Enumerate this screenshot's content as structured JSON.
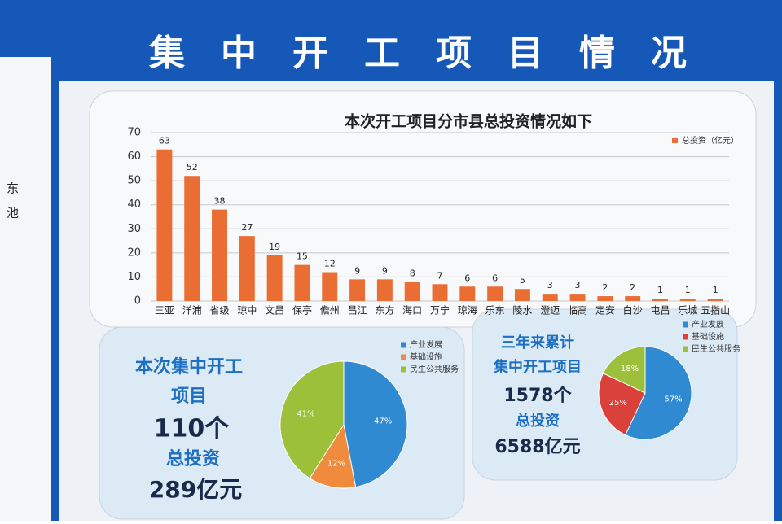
{
  "header": {
    "title": "集中开工项目情况"
  },
  "side_text": [
    "东",
    "池"
  ],
  "chart_data": [
    {
      "type": "bar",
      "title": "本次开工项目分市县总投资情况如下",
      "categories": [
        "三亚",
        "洋浦",
        "省级",
        "琼中",
        "文昌",
        "保亭",
        "儋州",
        "昌江",
        "东方",
        "海口",
        "万宁",
        "琼海",
        "乐东",
        "陵水",
        "澄迈",
        "临高",
        "定安",
        "白沙",
        "屯昌",
        "乐城",
        "五指山"
      ],
      "series": [
        {
          "name": "总投资（亿元）",
          "color": "#ea6d33",
          "values": [
            63,
            52,
            38,
            27,
            19,
            15,
            12,
            9,
            9,
            8,
            7,
            6,
            6,
            5,
            3,
            3,
            2,
            2,
            1,
            1,
            1
          ]
        }
      ],
      "ylim": [
        0,
        70
      ],
      "yticks": [
        0,
        10,
        20,
        30,
        40,
        50,
        60,
        70
      ],
      "grid": true,
      "legend": "top-right"
    },
    {
      "type": "pie",
      "categories": [
        "产业发展",
        "基础设施",
        "民生公共服务"
      ],
      "values": [
        47,
        12,
        41
      ],
      "value_labels": [
        "47%",
        "12%",
        "41%"
      ],
      "colors": [
        "#2f8ad2",
        "#f08b3d",
        "#9dc03b"
      ]
    },
    {
      "type": "pie",
      "categories": [
        "产业发展",
        "基础设施",
        "民生公共服务"
      ],
      "values": [
        57,
        25,
        18
      ],
      "value_labels": [
        "57%",
        "25%",
        "18%"
      ],
      "colors": [
        "#2f8ad2",
        "#d9413a",
        "#9dc03b"
      ]
    }
  ],
  "panels": [
    {
      "lines": [
        "本次集中开工",
        "项目",
        "110个",
        "总投资",
        "289亿元"
      ]
    },
    {
      "lines": [
        "三年来累计",
        "集中开工项目",
        "1578个",
        "总投资",
        "6588亿元"
      ]
    }
  ]
}
